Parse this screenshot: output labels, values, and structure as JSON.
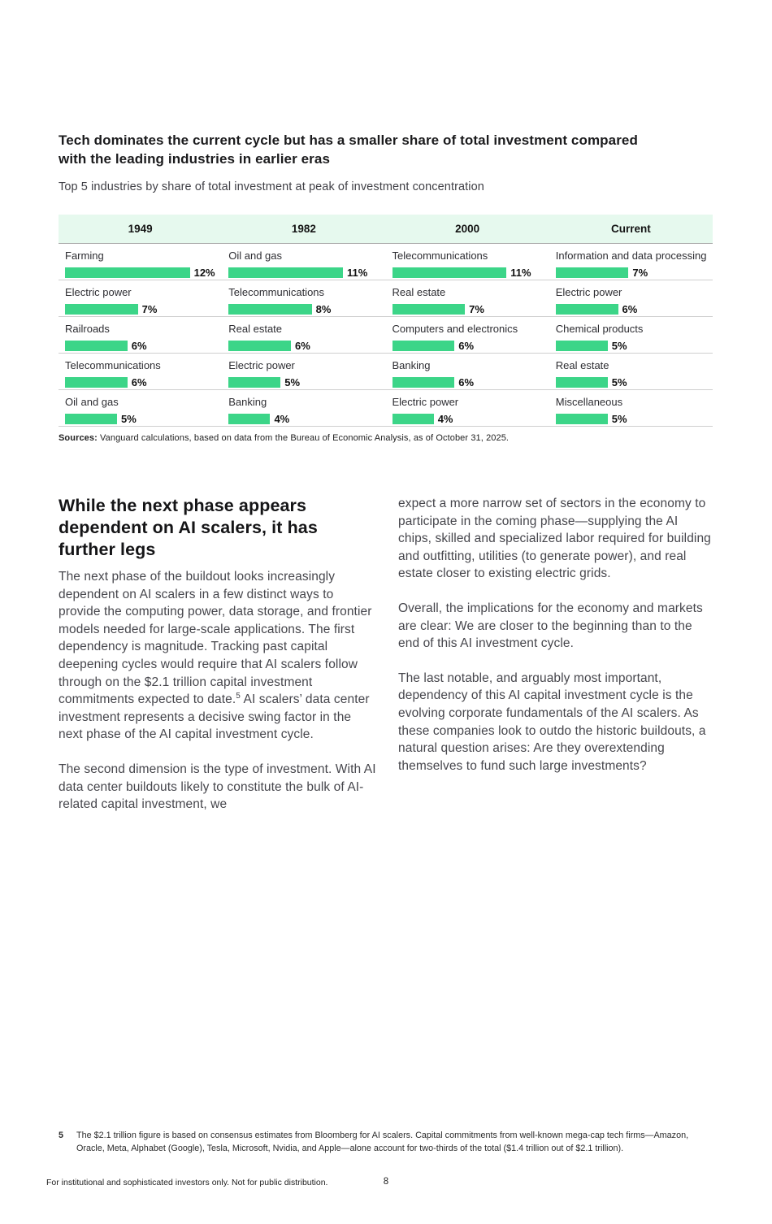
{
  "figure": {
    "title_lines": [
      "Tech dominates the current cycle but has a smaller share of total investment compared",
      "with the leading industries in earlier eras"
    ],
    "subtitle": "Top 5 industries by share of total investment at peak of investment concentration",
    "sources_label": "Sources:",
    "sources_text": " Vanguard calculations, based on data from the Bureau of Economic Analysis, as of October 31, 2025.",
    "bar_color": "#3cd588",
    "header_band_color": "#e6f9ee"
  },
  "chart_data": {
    "type": "bar",
    "title": "Top 5 industries by share of total investment at peak of investment concentration",
    "unit": "%",
    "years": [
      "1949",
      "1982",
      "2000",
      "Current"
    ],
    "rows": [
      [
        {
          "label": "Farming",
          "value": 12
        },
        {
          "label": "Oil and gas",
          "value": 11
        },
        {
          "label": "Telecommunications",
          "value": 11
        },
        {
          "label": "Information and data processing",
          "value": 7
        }
      ],
      [
        {
          "label": "Electric power",
          "value": 7
        },
        {
          "label": "Telecommunications",
          "value": 8
        },
        {
          "label": "Real estate",
          "value": 7
        },
        {
          "label": "Electric power",
          "value": 6
        }
      ],
      [
        {
          "label": "Railroads",
          "value": 6
        },
        {
          "label": "Real estate",
          "value": 6
        },
        {
          "label": "Computers and electronics",
          "value": 6
        },
        {
          "label": "Chemical products",
          "value": 5
        }
      ],
      [
        {
          "label": "Telecommunications",
          "value": 6
        },
        {
          "label": "Electric power",
          "value": 5
        },
        {
          "label": "Banking",
          "value": 6
        },
        {
          "label": "Real estate",
          "value": 5
        }
      ],
      [
        {
          "label": "Oil and gas",
          "value": 5
        },
        {
          "label": "Banking",
          "value": 4
        },
        {
          "label": "Electric power",
          "value": 4
        },
        {
          "label": "Miscellaneous",
          "value": 5
        }
      ]
    ]
  },
  "article": {
    "heading_lines": [
      "While the next phase appears",
      "dependent on AI scalers, it has",
      "further legs"
    ],
    "left_p1_before": "The next phase of the buildout looks increasingly dependent on AI scalers in a few distinct ways to provide the computing power, data storage, and frontier models needed for large-scale applications. The first dependency is magnitude. Tracking past capital deepening cycles would require that AI scalers follow through on the $2.1 trillion capital investment commitments expected to date.",
    "left_p1_sup": "5",
    "left_p1_after": " AI scalers’ data center investment represents a decisive swing factor in the next phase of the AI capital investment cycle.",
    "left_p2": "The second dimension is the type of investment. With AI data center buildouts likely to constitute the bulk of AI-related capital investment, we",
    "right_paragraphs": [
      "expect a more narrow set of sectors in the economy to participate in the coming phase—supplying the AI chips, skilled and specialized labor required for building and outfitting, utilities (to generate power), and real estate closer to existing electric grids.",
      "Overall, the implications for the economy and markets are clear: We are closer to the beginning than to the end of this AI investment cycle.",
      "The last notable, and arguably most important, dependency of this AI capital investment cycle is the evolving corporate fundamentals of the AI scalers. As these companies look to outdo the historic buildouts, a natural question arises: Are they overextending themselves to fund such large investments?"
    ]
  },
  "footnote": {
    "number": "5",
    "text": "The $2.1 trillion figure is based on consensus estimates from Bloomberg for AI scalers. Capital commitments from well-known mega-cap tech firms—Amazon, Oracle, Meta, Alphabet (Google), Tesla, Microsoft, Nvidia, and Apple—alone account for two-thirds of the total ($1.4 trillion out of $2.1 trillion)."
  },
  "footer": {
    "disclaimer": "For institutional and sophisticated investors only. Not for public distribution.",
    "page_number": "8"
  }
}
